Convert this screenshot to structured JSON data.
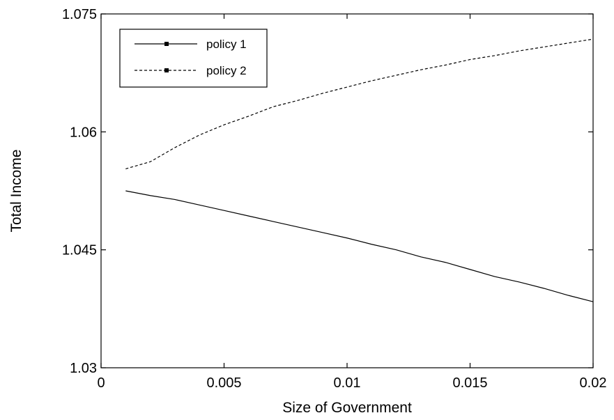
{
  "chart_data": {
    "type": "line",
    "title": "",
    "xlabel": "Size of Government",
    "ylabel": "Total Income",
    "xlim": [
      0,
      0.02
    ],
    "ylim": [
      1.03,
      1.075
    ],
    "xticks": [
      0,
      0.005,
      0.01,
      0.015,
      0.02
    ],
    "xtick_labels": [
      "0",
      "0.005",
      "0.01",
      "0.015",
      "0.02"
    ],
    "yticks": [
      1.03,
      1.045,
      1.06,
      1.075
    ],
    "ytick_labels": [
      "1.03",
      "1.045",
      "1.06",
      "1.075"
    ],
    "grid": false,
    "legend_position": "top-left",
    "x": [
      0.001,
      0.002,
      0.003,
      0.004,
      0.005,
      0.006,
      0.007,
      0.008,
      0.009,
      0.01,
      0.011,
      0.012,
      0.013,
      0.014,
      0.015,
      0.016,
      0.017,
      0.018,
      0.019,
      0.02
    ],
    "series": [
      {
        "name": "policy 1",
        "dash": "solid",
        "color": "#000000",
        "values": [
          1.0525,
          1.0519,
          1.0514,
          1.0507,
          1.05,
          1.0493,
          1.0486,
          1.0479,
          1.0472,
          1.0465,
          1.0457,
          1.045,
          1.0441,
          1.0434,
          1.0425,
          1.0416,
          1.0409,
          1.0401,
          1.0392,
          1.0384
        ]
      },
      {
        "name": "policy 2",
        "dash": "dashed",
        "color": "#000000",
        "values": [
          1.0553,
          1.0562,
          1.058,
          1.0596,
          1.0609,
          1.062,
          1.0632,
          1.064,
          1.0649,
          1.0657,
          1.0665,
          1.0672,
          1.0679,
          1.0685,
          1.0692,
          1.0697,
          1.0703,
          1.0708,
          1.0713,
          1.0718
        ]
      }
    ]
  }
}
